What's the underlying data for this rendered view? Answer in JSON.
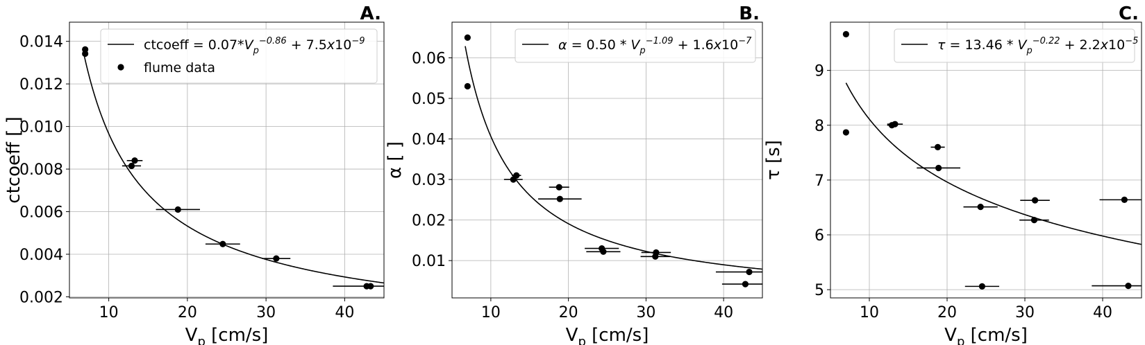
{
  "chart_data": [
    {
      "type": "scatter",
      "panel_label": "A.",
      "xlabel": "V",
      "xlabel_sub": "p",
      "xlabel_unit": " [cm/s]",
      "ylabel": "ctcoeff [ ]",
      "xlim": [
        5,
        45
      ],
      "ylim": [
        0.00195,
        0.0149
      ],
      "xticks": [
        10,
        20,
        30,
        40
      ],
      "xtick_labels": [
        "10",
        "20",
        "30",
        "40"
      ],
      "yticks": [
        0.002,
        0.004,
        0.006,
        0.008,
        0.01,
        0.012,
        0.014
      ],
      "ytick_labels": [
        "0.002",
        "0.004",
        "0.006",
        "0.008",
        "0.010",
        "0.012",
        "0.014"
      ],
      "grid": true,
      "legend_position": "top-right",
      "fit": {
        "a": 0.07,
        "b": -0.86,
        "c": 7.5e-09,
        "x_start": 6.7
      },
      "legend": {
        "fit_label_parts": [
          {
            "t": "ctcoeff = 0.07*",
            "s": "n"
          },
          {
            "t": "V",
            "s": "i"
          },
          {
            "t": "p",
            "s": "sub"
          },
          {
            "t": "−0.86",
            "s": "sup"
          },
          {
            "t": " + 7.5",
            "s": "n"
          },
          {
            "t": "x",
            "s": "i"
          },
          {
            "t": "10",
            "s": "n"
          },
          {
            "t": "−9",
            "s": "sup"
          }
        ],
        "data_label": "flume data"
      },
      "points": [
        {
          "x": 7.0,
          "y": 0.01362,
          "xerr": 0.12
        },
        {
          "x": 7.0,
          "y": 0.01342,
          "xerr": 0.12
        },
        {
          "x": 13.3,
          "y": 0.0084,
          "xerr": 1.0
        },
        {
          "x": 12.9,
          "y": 0.00815,
          "xerr": 1.2
        },
        {
          "x": 18.8,
          "y": 0.0061,
          "xerr": 2.8
        },
        {
          "x": 24.5,
          "y": 0.00448,
          "xerr": 2.2
        },
        {
          "x": 31.3,
          "y": 0.0038,
          "xerr": 1.8
        },
        {
          "x": 42.8,
          "y": 0.0025,
          "xerr": 4.3
        },
        {
          "x": 43.3,
          "y": 0.0025,
          "xerr": 0.3
        }
      ]
    },
    {
      "type": "scatter",
      "panel_label": "B.",
      "xlabel": "V",
      "xlabel_sub": "p",
      "xlabel_unit": " [cm/s]",
      "ylabel": "α [ ]",
      "xlim": [
        5,
        45
      ],
      "ylim": [
        0.0008,
        0.0688
      ],
      "xticks": [
        10,
        20,
        30,
        40
      ],
      "xtick_labels": [
        "10",
        "20",
        "30",
        "40"
      ],
      "yticks": [
        0.01,
        0.02,
        0.03,
        0.04,
        0.05,
        0.06
      ],
      "ytick_labels": [
        "0.01",
        "0.02",
        "0.03",
        "0.04",
        "0.05",
        "0.06"
      ],
      "grid": true,
      "legend_position": "top-right",
      "fit": {
        "a": 0.5,
        "b": -1.09,
        "c": 1.6e-07,
        "x_start": 6.7
      },
      "legend": {
        "fit_label_parts": [
          {
            "t": "α",
            "s": "i"
          },
          {
            "t": " = 0.50 * ",
            "s": "n"
          },
          {
            "t": "V",
            "s": "i"
          },
          {
            "t": "p",
            "s": "sub"
          },
          {
            "t": "−1.09",
            "s": "sup"
          },
          {
            "t": " + 1.6",
            "s": "n"
          },
          {
            "t": "x",
            "s": "i"
          },
          {
            "t": "10",
            "s": "n"
          },
          {
            "t": "−7",
            "s": "sup"
          }
        ],
        "data_label": ""
      },
      "points": [
        {
          "x": 7.0,
          "y": 0.065,
          "xerr": 0.12
        },
        {
          "x": 7.0,
          "y": 0.053,
          "xerr": 0.12
        },
        {
          "x": 13.3,
          "y": 0.031,
          "xerr": 0.6
        },
        {
          "x": 12.9,
          "y": 0.03,
          "xerr": 1.2
        },
        {
          "x": 18.8,
          "y": 0.0281,
          "xerr": 1.3
        },
        {
          "x": 18.9,
          "y": 0.0252,
          "xerr": 2.8
        },
        {
          "x": 24.3,
          "y": 0.013,
          "xerr": 2.2
        },
        {
          "x": 24.5,
          "y": 0.0122,
          "xerr": 2.2
        },
        {
          "x": 31.3,
          "y": 0.012,
          "xerr": 1.9
        },
        {
          "x": 31.2,
          "y": 0.011,
          "xerr": 1.9
        },
        {
          "x": 43.3,
          "y": 0.0072,
          "xerr": 4.3
        },
        {
          "x": 42.8,
          "y": 0.0042,
          "xerr": 3.0
        }
      ]
    },
    {
      "type": "scatter",
      "panel_label": "C.",
      "xlabel": "V",
      "xlabel_sub": "p",
      "xlabel_unit": " [cm/s]",
      "ylabel": "τ [s]",
      "xlim": [
        5,
        45
      ],
      "ylim": [
        4.85,
        9.88
      ],
      "xticks": [
        10,
        20,
        30,
        40
      ],
      "xtick_labels": [
        "10",
        "20",
        "30",
        "40"
      ],
      "yticks": [
        5,
        6,
        7,
        8,
        9
      ],
      "ytick_labels": [
        "5",
        "6",
        "7",
        "8",
        "9"
      ],
      "grid": true,
      "legend_position": "top-right",
      "fit": {
        "a": 13.46,
        "b": -0.22,
        "c": 2.2e-05,
        "x_start": 7.0
      },
      "legend": {
        "fit_label_parts": [
          {
            "t": "τ",
            "s": "i"
          },
          {
            "t": " = 13.46 * ",
            "s": "n"
          },
          {
            "t": "V",
            "s": "i"
          },
          {
            "t": "p",
            "s": "sub"
          },
          {
            "t": "−0.22",
            "s": "sup"
          },
          {
            "t": " + 2.2",
            "s": "n"
          },
          {
            "t": "x",
            "s": "i"
          },
          {
            "t": "10",
            "s": "n"
          },
          {
            "t": "−5",
            "s": "sup"
          }
        ],
        "data_label": ""
      },
      "points": [
        {
          "x": 7.0,
          "y": 9.66,
          "xerr": 0.12
        },
        {
          "x": 7.0,
          "y": 7.87,
          "xerr": 0.12
        },
        {
          "x": 12.9,
          "y": 8.0,
          "xerr": 0.6
        },
        {
          "x": 13.3,
          "y": 8.02,
          "xerr": 1.0
        },
        {
          "x": 18.8,
          "y": 7.6,
          "xerr": 0.9
        },
        {
          "x": 18.9,
          "y": 7.22,
          "xerr": 2.8
        },
        {
          "x": 24.3,
          "y": 6.51,
          "xerr": 2.2
        },
        {
          "x": 24.5,
          "y": 5.06,
          "xerr": 2.2
        },
        {
          "x": 31.3,
          "y": 6.63,
          "xerr": 1.9
        },
        {
          "x": 31.2,
          "y": 6.27,
          "xerr": 1.9
        },
        {
          "x": 42.8,
          "y": 6.64,
          "xerr": 3.2
        },
        {
          "x": 43.3,
          "y": 5.07,
          "xerr": 4.7
        }
      ]
    }
  ]
}
